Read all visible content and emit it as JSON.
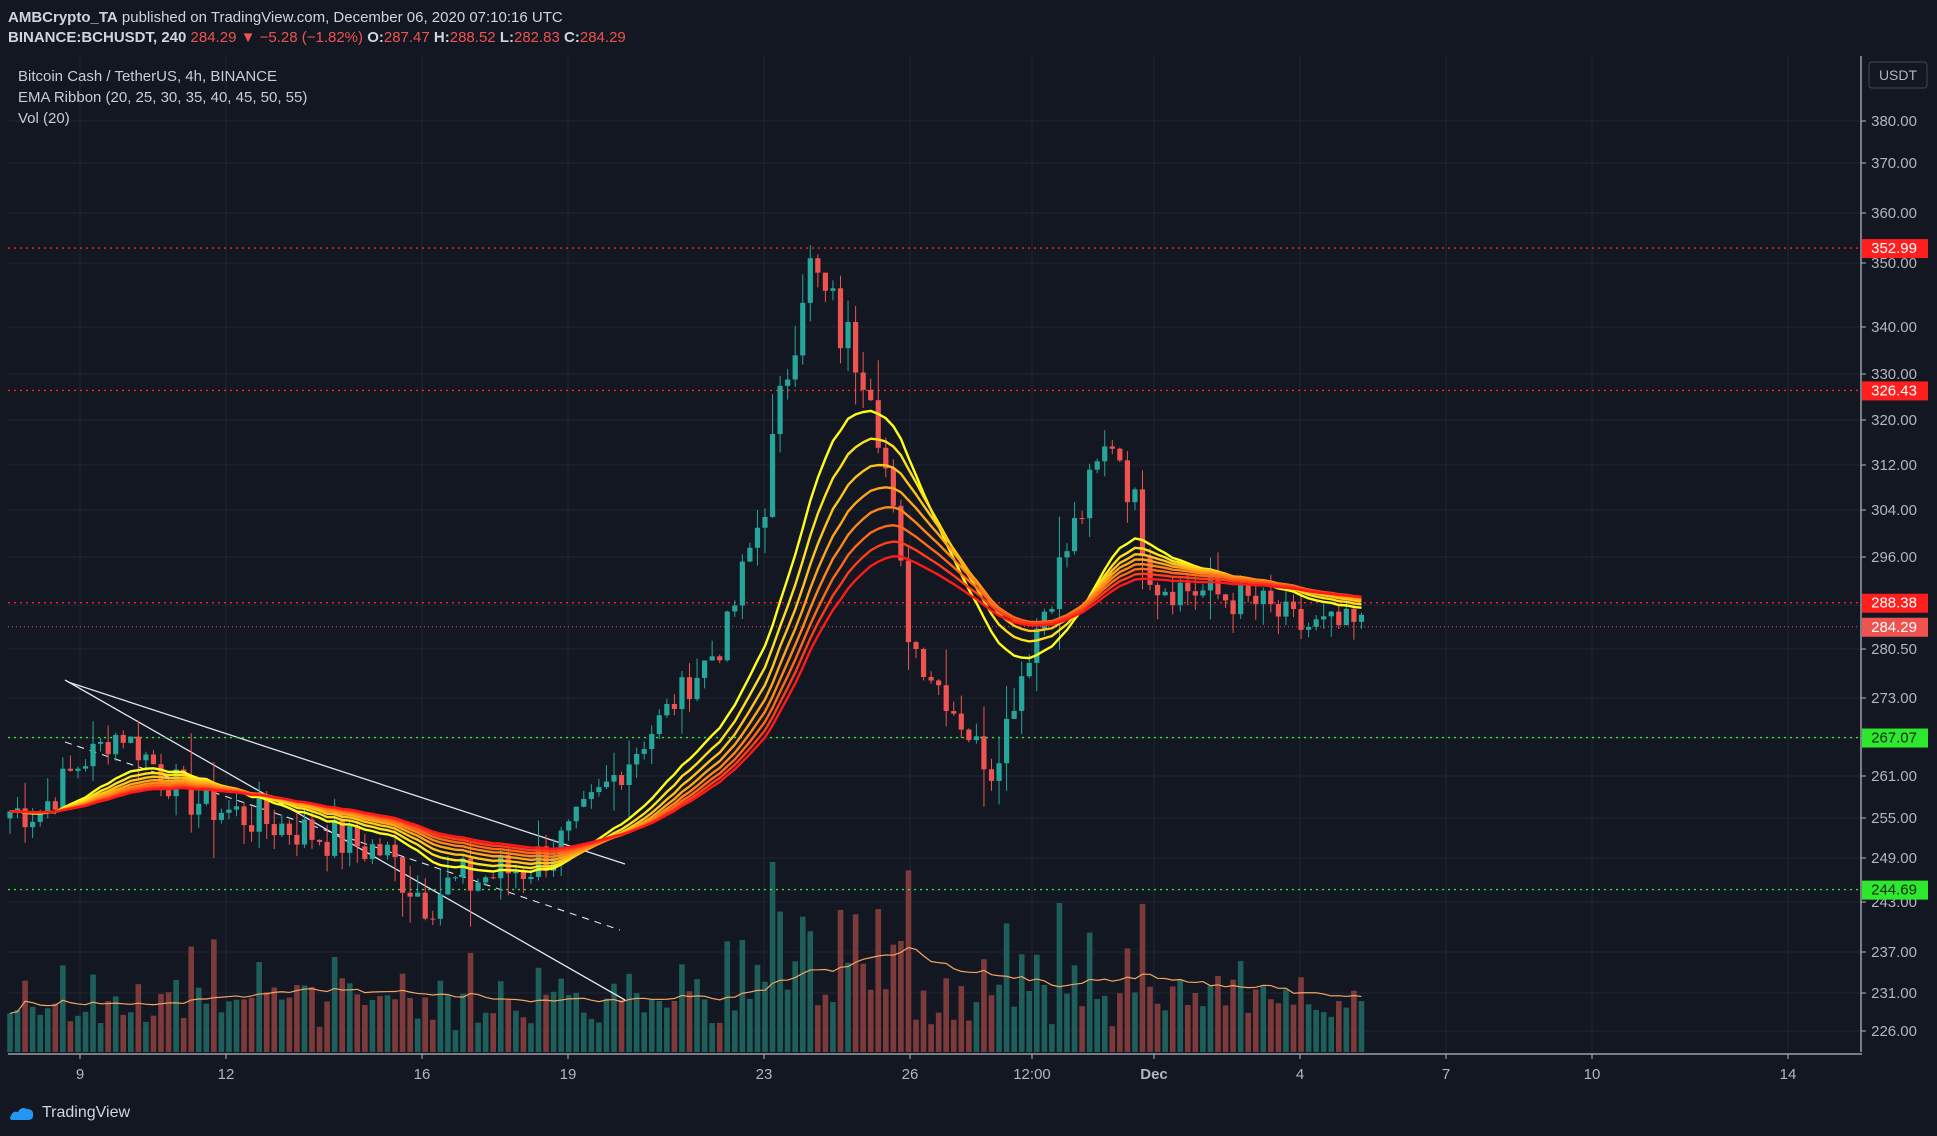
{
  "header": {
    "publisher_line_pre": "AMBCrypto_TA",
    "publisher_line_mid": " published on TradingView.com, December 06, 2020 07:10:16 UTC",
    "symbol": "BINANCE:BCHUSDT, 240",
    "last": "284.29",
    "change": "▼ −5.28 (−1.82%)",
    "o_label": "O:",
    "o": "287.47",
    "h_label": "H:",
    "h": "288.52",
    "l_label": "L:",
    "l": "282.83",
    "c_label": "C:",
    "c": "284.29"
  },
  "legend": {
    "title": "Bitcoin Cash / TetherUS, 4h, BINANCE",
    "ema": "EMA Ribbon (20, 25, 30, 35, 40, 45, 50, 55)",
    "vol": "Vol (20)"
  },
  "footer": {
    "brand": "TradingView"
  },
  "colors": {
    "background": "#131722",
    "up": "#26a69a",
    "down": "#ef5350",
    "vol_up": "#1f5f5b",
    "vol_down": "#7d3a3a",
    "resistance": "#ff1f1f",
    "support": "#2ee82e"
  },
  "chart_data": {
    "type": "candlestick",
    "currency_label": "USDT",
    "y_ticks": [
      226.0,
      231.0,
      237.0,
      243.0,
      249.0,
      255.0,
      261.0,
      267.0,
      273.0,
      280.5,
      288.0,
      296.0,
      304.0,
      312.0,
      320.0,
      330.0,
      340.0,
      350.0,
      360.0,
      370.0,
      380.0
    ],
    "x_ticks": [
      "9",
      "12",
      "16",
      "19",
      "23",
      "26",
      "12:00",
      "Dec",
      "4",
      "7",
      "10",
      "14"
    ],
    "horizontal_levels": [
      {
        "value": "352.99",
        "kind": "resistance"
      },
      {
        "value": "326.43",
        "kind": "resistance"
      },
      {
        "value": "288.38",
        "kind": "resistance"
      },
      {
        "value": "267.07",
        "kind": "support"
      },
      {
        "value": "244.69",
        "kind": "support"
      }
    ],
    "last_price": "284.29",
    "ema_ribbon_periods": [
      20,
      25,
      30,
      35,
      40,
      45,
      50,
      55
    ],
    "volume_ma_period": 20,
    "close_path": [
      [
        "9",
        256
      ],
      [
        "9",
        263
      ],
      [
        "9",
        268
      ],
      [
        "12",
        258
      ],
      [
        "12",
        256
      ],
      [
        "16",
        250
      ],
      [
        "16",
        244
      ],
      [
        "19",
        248
      ],
      [
        "19",
        252
      ],
      [
        "23",
        282
      ],
      [
        "23",
        305
      ],
      [
        "23",
        350
      ],
      [
        "26",
        330
      ],
      [
        "26",
        282
      ],
      [
        "12:00",
        262
      ],
      [
        "12:00",
        282
      ],
      [
        "Dec",
        318
      ],
      [
        "Dec",
        292
      ],
      [
        "4",
        288
      ],
      [
        "4",
        284.29
      ]
    ]
  }
}
